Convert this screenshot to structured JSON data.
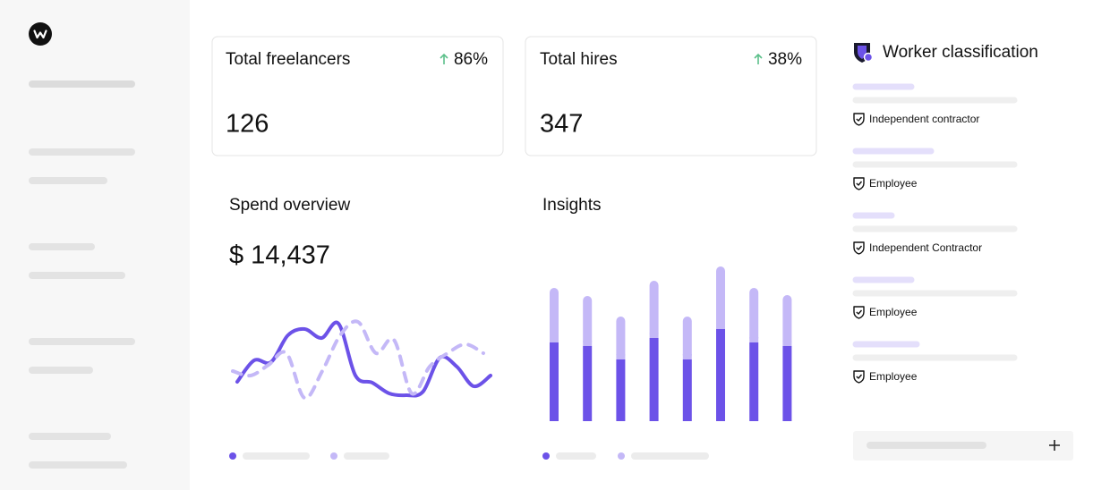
{
  "cards": [
    {
      "title": "Total freelancers",
      "change": "86%",
      "value": "126"
    },
    {
      "title": "Total hires",
      "change": "38%",
      "value": "347"
    }
  ],
  "spend_overview": {
    "title": "Spend overview",
    "amount": "$ 14,437",
    "chart": {
      "type": "line",
      "ylim": [
        0,
        120
      ],
      "series": [
        {
          "color": "#6c52e8",
          "style": "solid",
          "values": [
            33,
            57,
            55,
            85,
            92,
            82,
            98,
            40,
            32,
            20,
            18,
            22,
            60,
            50,
            28,
            40
          ]
        },
        {
          "color": "#c4b8f7",
          "style": "dashed",
          "values": [
            45,
            40,
            52,
            65,
            15,
            45,
            85,
            100,
            65,
            80,
            20,
            50,
            65,
            75,
            65
          ]
        }
      ]
    }
  },
  "insights": {
    "title": "Insights",
    "chart": {
      "type": "bar",
      "stacked": true,
      "ylim": [
        0,
        180
      ],
      "series": [
        {
          "color": "#6c52e8",
          "values": [
            88,
            84,
            69,
            93,
            69,
            103,
            88,
            84
          ]
        },
        {
          "color": "#c4b8f7",
          "values": [
            61,
            56,
            48,
            64,
            48,
            70,
            61,
            57
          ]
        }
      ]
    }
  },
  "worker_classification": {
    "title": "Worker classification",
    "items": [
      "Independent contractor",
      "Employee",
      "Independent Contractor",
      "Employee",
      "Employee"
    ]
  }
}
